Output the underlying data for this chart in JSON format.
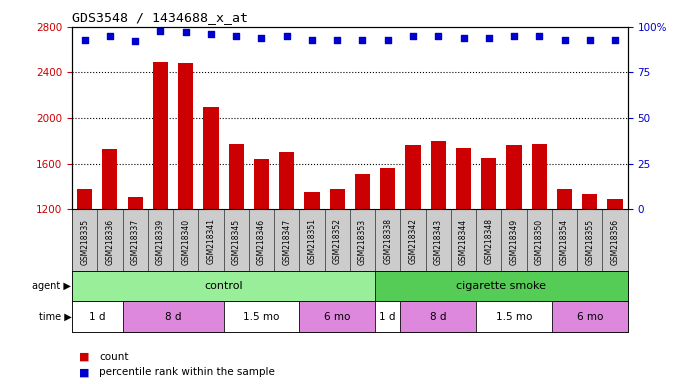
{
  "title": "GDS3548 / 1434688_x_at",
  "samples": [
    "GSM218335",
    "GSM218336",
    "GSM218337",
    "GSM218339",
    "GSM218340",
    "GSM218341",
    "GSM218345",
    "GSM218346",
    "GSM218347",
    "GSM218351",
    "GSM218352",
    "GSM218353",
    "GSM218338",
    "GSM218342",
    "GSM218343",
    "GSM218344",
    "GSM218348",
    "GSM218349",
    "GSM218350",
    "GSM218354",
    "GSM218355",
    "GSM218356"
  ],
  "counts": [
    1380,
    1730,
    1310,
    2490,
    2480,
    2100,
    1770,
    1640,
    1700,
    1350,
    1380,
    1510,
    1560,
    1760,
    1800,
    1740,
    1650,
    1760,
    1770,
    1380,
    1330,
    1290
  ],
  "percentiles": [
    93,
    95,
    92,
    98,
    97,
    96,
    95,
    94,
    95,
    93,
    93,
    93,
    93,
    95,
    95,
    94,
    94,
    95,
    95,
    93,
    93,
    93
  ],
  "ylim_left": [
    1200,
    2800
  ],
  "ylim_right": [
    0,
    100
  ],
  "yticks_left": [
    1200,
    1600,
    2000,
    2400,
    2800
  ],
  "yticks_right": [
    0,
    25,
    50,
    75,
    100
  ],
  "bar_color": "#cc0000",
  "dot_color": "#0000cc",
  "agent_groups": [
    {
      "label": "control",
      "start": 0,
      "end": 12,
      "color": "#99ee99"
    },
    {
      "label": "cigarette smoke",
      "start": 12,
      "end": 22,
      "color": "#55cc55"
    }
  ],
  "time_groups": [
    {
      "label": "1 d",
      "start": 0,
      "end": 2,
      "color": "#ffffff"
    },
    {
      "label": "8 d",
      "start": 2,
      "end": 6,
      "color": "#dd88dd"
    },
    {
      "label": "1.5 mo",
      "start": 6,
      "end": 9,
      "color": "#ffffff"
    },
    {
      "label": "6 mo",
      "start": 9,
      "end": 12,
      "color": "#dd88dd"
    },
    {
      "label": "1 d",
      "start": 12,
      "end": 13,
      "color": "#ffffff"
    },
    {
      "label": "8 d",
      "start": 13,
      "end": 16,
      "color": "#dd88dd"
    },
    {
      "label": "1.5 mo",
      "start": 16,
      "end": 19,
      "color": "#ffffff"
    },
    {
      "label": "6 mo",
      "start": 19,
      "end": 22,
      "color": "#dd88dd"
    }
  ],
  "bar_color_legend": "#cc0000",
  "dot_color_legend": "#0000cc",
  "xlabel_area_color": "#cccccc",
  "grid_color": "#000000"
}
